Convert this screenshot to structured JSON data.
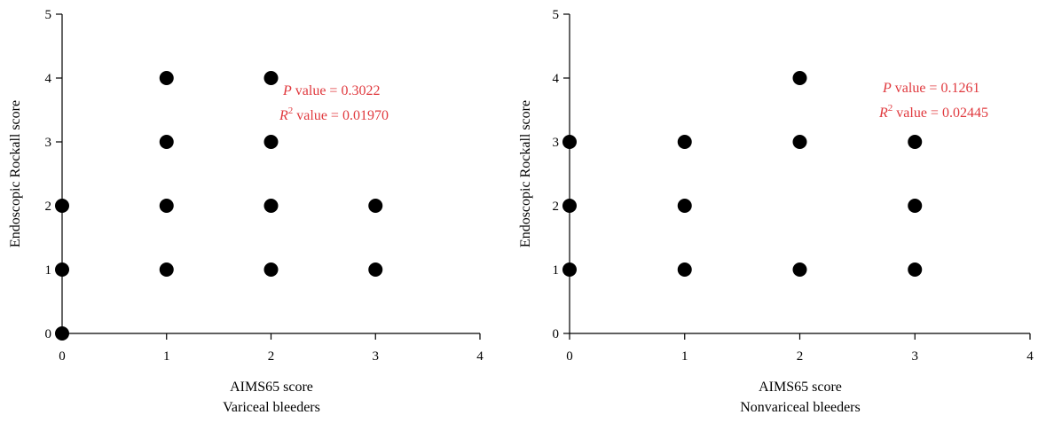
{
  "chart_data": [
    {
      "type": "scatter",
      "xlabel": "AIMS65 score",
      "ylabel": "Endoscopic Rockall score",
      "subtitle": "Variceal bleeders",
      "xlim": [
        0,
        4
      ],
      "ylim": [
        0,
        5
      ],
      "xticks": [
        "0",
        "1",
        "2",
        "3",
        "4"
      ],
      "yticks": [
        "0",
        "1",
        "2",
        "3",
        "4",
        "5"
      ],
      "points": [
        [
          0,
          0
        ],
        [
          0,
          1
        ],
        [
          0,
          2
        ],
        [
          1,
          1
        ],
        [
          1,
          2
        ],
        [
          1,
          3
        ],
        [
          1,
          4
        ],
        [
          2,
          1
        ],
        [
          2,
          2
        ],
        [
          2,
          3
        ],
        [
          2,
          4
        ],
        [
          3,
          1
        ],
        [
          3,
          2
        ]
      ],
      "annotation": {
        "p_italic": "P",
        "p_text": " value = 0.3022",
        "r_italic": "R",
        "r_sup": "2",
        "r_text": " value = 0.01970"
      },
      "annotation_color": "#e0393e",
      "marker_color": "#000000"
    },
    {
      "type": "scatter",
      "xlabel": "AIMS65 score",
      "ylabel": "Endoscopic Rockall score",
      "subtitle": "Nonvariceal bleeders",
      "xlim": [
        0,
        4
      ],
      "ylim": [
        0,
        5
      ],
      "xticks": [
        "0",
        "1",
        "2",
        "3",
        "4"
      ],
      "yticks": [
        "0",
        "1",
        "2",
        "3",
        "4",
        "5"
      ],
      "points": [
        [
          0,
          1
        ],
        [
          0,
          2
        ],
        [
          0,
          3
        ],
        [
          1,
          1
        ],
        [
          1,
          2
        ],
        [
          1,
          3
        ],
        [
          2,
          1
        ],
        [
          2,
          3
        ],
        [
          2,
          4
        ],
        [
          3,
          1
        ],
        [
          3,
          2
        ],
        [
          3,
          3
        ]
      ],
      "annotation": {
        "p_italic": "P",
        "p_text": " value = 0.1261",
        "r_italic": "R",
        "r_sup": "2",
        "r_text": " value = 0.02445"
      },
      "annotation_color": "#e0393e",
      "marker_color": "#000000"
    }
  ]
}
